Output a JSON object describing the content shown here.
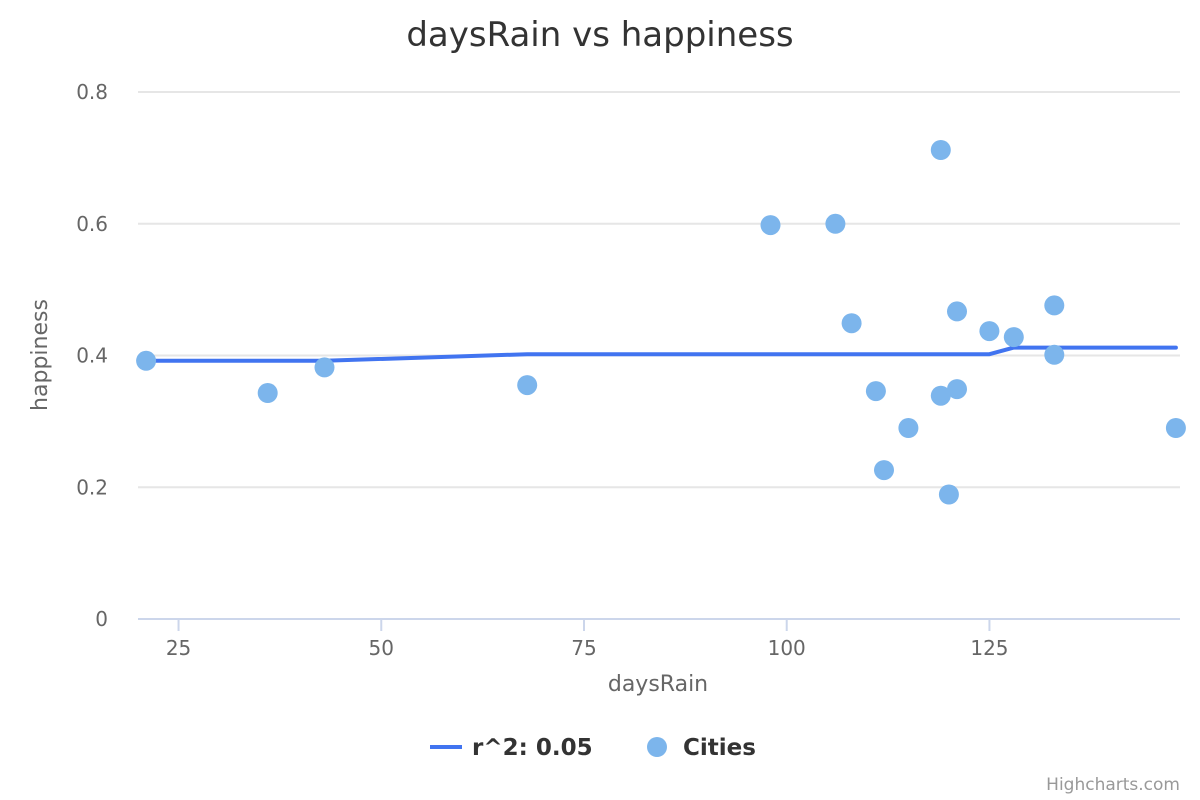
{
  "chart_data": {
    "type": "scatter",
    "title": "daysRain vs happiness",
    "xlabel": "daysRain",
    "ylabel": "happiness",
    "xlim": [
      20,
      148.5
    ],
    "ylim": [
      0,
      0.8
    ],
    "x_ticks": [
      25,
      50,
      75,
      100,
      125
    ],
    "y_ticks": [
      0,
      0.2,
      0.4,
      0.6,
      0.8
    ],
    "x_tick_labels": [
      "25",
      "50",
      "75",
      "100",
      "125"
    ],
    "y_tick_labels": [
      "0",
      "0.2",
      "0.4",
      "0.6",
      "0.8"
    ],
    "grid": true,
    "legend_position": "bottom-center",
    "series": [
      {
        "name": "r^2: 0.05",
        "type": "line",
        "color": "#4174f0",
        "points": [
          [
            21,
            0.392
          ],
          [
            43,
            0.392
          ],
          [
            68,
            0.402
          ],
          [
            125,
            0.402
          ],
          [
            128,
            0.412
          ],
          [
            148,
            0.412
          ]
        ]
      },
      {
        "name": "Cities",
        "type": "scatter",
        "color": "#7cb5ec",
        "points": [
          [
            21,
            0.392
          ],
          [
            36,
            0.343
          ],
          [
            43,
            0.382
          ],
          [
            68,
            0.355
          ],
          [
            98,
            0.598
          ],
          [
            106,
            0.6
          ],
          [
            108,
            0.449
          ],
          [
            111,
            0.346
          ],
          [
            112,
            0.226
          ],
          [
            115,
            0.29
          ],
          [
            119,
            0.712
          ],
          [
            119,
            0.339
          ],
          [
            120,
            0.189
          ],
          [
            121,
            0.467
          ],
          [
            121,
            0.349
          ],
          [
            125,
            0.437
          ],
          [
            128,
            0.428
          ],
          [
            133,
            0.476
          ],
          [
            133,
            0.401
          ],
          [
            148,
            0.29
          ]
        ]
      }
    ]
  },
  "credits": "Highcharts.com"
}
